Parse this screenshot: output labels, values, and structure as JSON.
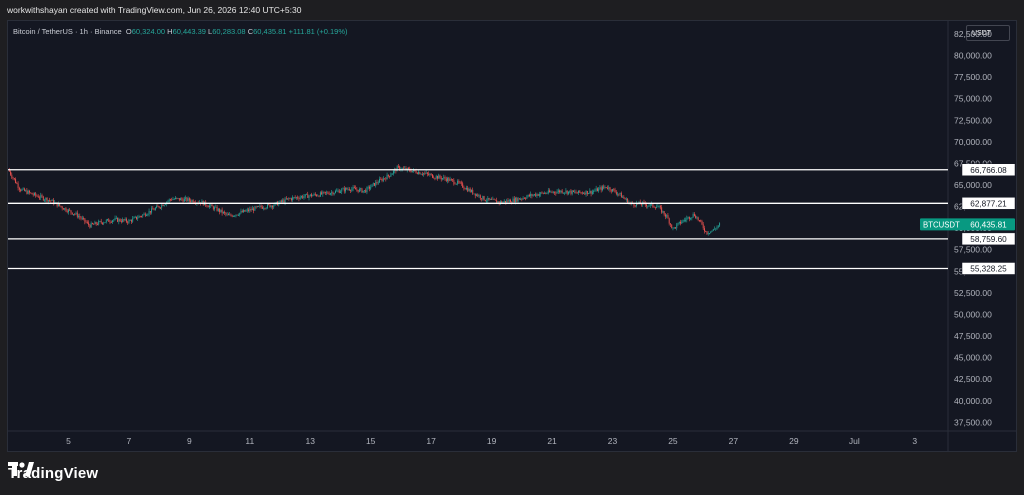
{
  "header": {
    "attribution": "workwithshayan created with TradingView.com, Jun 26, 2026 12:40 UTC+5:30"
  },
  "legend": {
    "symbol": "Bitcoin / TetherUS · 1h · Binance",
    "o_label": "O",
    "o_value": "60,324.00",
    "h_label": "H",
    "h_value": "60,443.39",
    "l_label": "L",
    "l_value": "60,283.08",
    "c_label": "C",
    "c_value": "60,435.81",
    "change": "+111.81 (+0.19%)"
  },
  "currency_button": "USDT",
  "footer": {
    "brand": "TradingView",
    "logo_icon": "tradingview-logo-icon"
  },
  "colors": {
    "up": "#26a69a",
    "down": "#ef5350",
    "background": "#141722",
    "level_line": "#ffffff",
    "price_tag": "#089981"
  },
  "chart_data": {
    "type": "candlestick",
    "symbol": "BTCUSDT",
    "interval": "1h",
    "ylim": [
      36500,
      84000
    ],
    "y_ticks": [
      "82,500.00",
      "80,000.00",
      "77,500.00",
      "75,000.00",
      "72,500.00",
      "70,000.00",
      "67,500.00",
      "65,000.00",
      "62,500.00",
      "60,000.00",
      "57,500.00",
      "55,000.00",
      "52,500.00",
      "50,000.00",
      "47,500.00",
      "45,000.00",
      "42,500.00",
      "40,000.00",
      "37,500.00"
    ],
    "x_ticks": [
      {
        "label": "5",
        "day": 5
      },
      {
        "label": "7",
        "day": 7
      },
      {
        "label": "9",
        "day": 9
      },
      {
        "label": "11",
        "day": 11
      },
      {
        "label": "13",
        "day": 13
      },
      {
        "label": "15",
        "day": 15
      },
      {
        "label": "17",
        "day": 17
      },
      {
        "label": "19",
        "day": 19
      },
      {
        "label": "21",
        "day": 21
      },
      {
        "label": "23",
        "day": 23
      },
      {
        "label": "25",
        "day": 25
      },
      {
        "label": "27",
        "day": 27
      },
      {
        "label": "29",
        "day": 29
      },
      {
        "label": "Jul",
        "day": 31
      },
      {
        "label": "3",
        "day": 33
      }
    ],
    "xlim": [
      3.0,
      34.1
    ],
    "data_end_day": 26.55,
    "price_path": [
      [
        3.0,
        66800
      ],
      [
        3.4,
        64500
      ],
      [
        3.9,
        63800
      ],
      [
        4.4,
        63200
      ],
      [
        4.9,
        62200
      ],
      [
        5.3,
        61500
      ],
      [
        5.7,
        60300
      ],
      [
        6.1,
        60700
      ],
      [
        6.5,
        61000
      ],
      [
        7.0,
        60800
      ],
      [
        7.5,
        61600
      ],
      [
        8.0,
        62500
      ],
      [
        8.4,
        63400
      ],
      [
        8.9,
        63300
      ],
      [
        9.4,
        63000
      ],
      [
        9.9,
        62200
      ],
      [
        10.3,
        61400
      ],
      [
        10.8,
        61900
      ],
      [
        11.3,
        62400
      ],
      [
        11.8,
        62700
      ],
      [
        12.3,
        63400
      ],
      [
        12.8,
        63700
      ],
      [
        13.3,
        63900
      ],
      [
        13.8,
        64200
      ],
      [
        14.3,
        64600
      ],
      [
        14.8,
        64300
      ],
      [
        15.2,
        65300
      ],
      [
        15.6,
        66100
      ],
      [
        15.9,
        67000
      ],
      [
        16.3,
        66700
      ],
      [
        16.7,
        66400
      ],
      [
        17.1,
        66000
      ],
      [
        17.5,
        65700
      ],
      [
        17.9,
        65200
      ],
      [
        18.3,
        64300
      ],
      [
        18.8,
        63300
      ],
      [
        19.3,
        63000
      ],
      [
        19.8,
        63300
      ],
      [
        20.3,
        63800
      ],
      [
        20.8,
        64100
      ],
      [
        21.3,
        64300
      ],
      [
        21.8,
        64100
      ],
      [
        22.3,
        64200
      ],
      [
        22.8,
        64800
      ],
      [
        23.2,
        64000
      ],
      [
        23.6,
        62800
      ],
      [
        24.0,
        62800
      ],
      [
        24.5,
        62500
      ],
      [
        24.8,
        61300
      ],
      [
        25.0,
        59900
      ],
      [
        25.3,
        60800
      ],
      [
        25.7,
        61600
      ],
      [
        25.9,
        60700
      ],
      [
        26.1,
        59500
      ],
      [
        26.3,
        59700
      ],
      [
        26.55,
        60436
      ]
    ],
    "levels": [
      {
        "label": "66,766.08",
        "value": 66766.08
      },
      {
        "label": "62,877.21",
        "value": 62877.21
      },
      {
        "label": "58,759.60",
        "value": 58759.6
      },
      {
        "label": "55,328.25",
        "value": 55328.25
      }
    ],
    "last_price": {
      "label": "BTCUSDT",
      "value": 60435.81,
      "value_label": "60,435.81"
    }
  }
}
